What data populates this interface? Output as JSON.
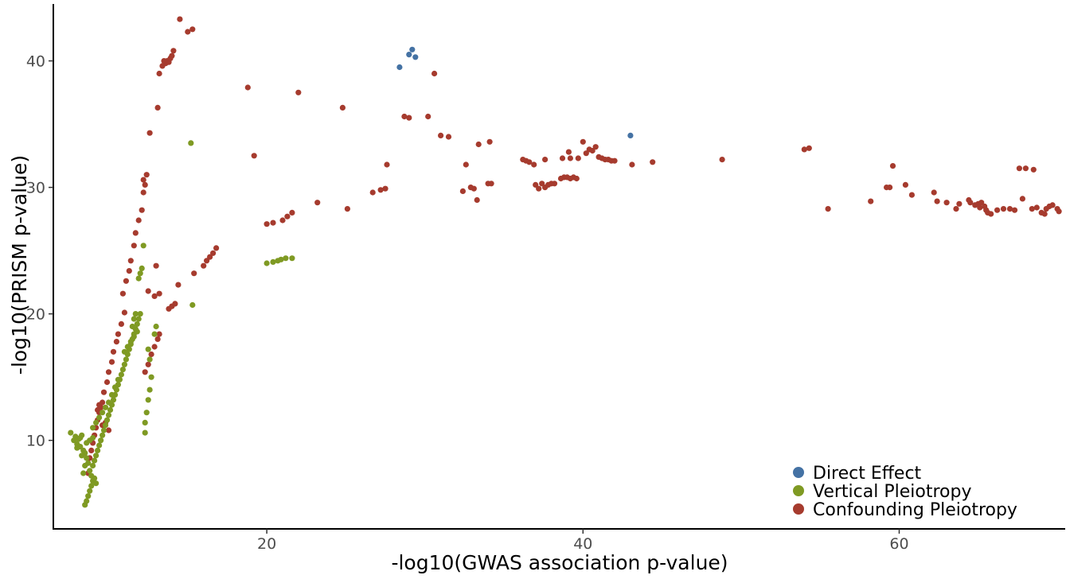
{
  "chart_data": {
    "type": "scatter",
    "title": "",
    "xlabel": "-log10(GWAS association p-value)",
    "ylabel": "-log10(PRISM p-value)",
    "xlim": [
      6.5,
      70.5
    ],
    "ylim": [
      3,
      44.5
    ],
    "xticks": [
      20,
      40,
      60
    ],
    "yticks": [
      10,
      20,
      30,
      40
    ],
    "grid": false,
    "legend_position": "bottom-right",
    "series": [
      {
        "name": "Direct Effect",
        "color": "#4472a4",
        "points": [
          [
            28.4,
            39.5
          ],
          [
            29.0,
            40.5
          ],
          [
            29.2,
            40.9
          ],
          [
            29.4,
            40.3
          ],
          [
            43.0,
            34.1
          ]
        ]
      },
      {
        "name": "Vertical Pleiotropy",
        "color": "#7f9a23",
        "points": [
          [
            7.6,
            10.6
          ],
          [
            7.8,
            10.0
          ],
          [
            7.9,
            10.3
          ],
          [
            8.0,
            9.7
          ],
          [
            8.1,
            10.1
          ],
          [
            8.2,
            9.5
          ],
          [
            8.3,
            10.4
          ],
          [
            8.4,
            9.2
          ],
          [
            8.5,
            9.0
          ],
          [
            8.6,
            8.6
          ],
          [
            8.7,
            8.2
          ],
          [
            8.8,
            7.6
          ],
          [
            8.9,
            7.2
          ],
          [
            9.0,
            6.8
          ],
          [
            8.9,
            6.4
          ],
          [
            8.8,
            6.0
          ],
          [
            8.7,
            5.6
          ],
          [
            8.6,
            5.2
          ],
          [
            8.5,
            4.9
          ],
          [
            9.1,
            7.0
          ],
          [
            9.2,
            6.6
          ],
          [
            9.0,
            8.0
          ],
          [
            9.1,
            8.4
          ],
          [
            9.2,
            8.8
          ],
          [
            9.3,
            9.2
          ],
          [
            9.4,
            9.6
          ],
          [
            9.5,
            10.0
          ],
          [
            9.6,
            10.4
          ],
          [
            9.7,
            10.8
          ],
          [
            9.8,
            11.2
          ],
          [
            9.9,
            11.6
          ],
          [
            10.0,
            12.0
          ],
          [
            10.1,
            12.4
          ],
          [
            10.2,
            12.8
          ],
          [
            10.3,
            13.2
          ],
          [
            10.4,
            13.6
          ],
          [
            10.5,
            14.0
          ],
          [
            10.6,
            14.4
          ],
          [
            10.7,
            14.8
          ],
          [
            10.8,
            15.2
          ],
          [
            10.9,
            15.6
          ],
          [
            11.0,
            16.0
          ],
          [
            11.1,
            16.4
          ],
          [
            11.2,
            16.8
          ],
          [
            11.3,
            17.2
          ],
          [
            11.4,
            17.6
          ],
          [
            11.5,
            18.0
          ],
          [
            11.6,
            18.4
          ],
          [
            11.7,
            18.8
          ],
          [
            11.8,
            19.2
          ],
          [
            11.9,
            19.6
          ],
          [
            12.0,
            20.0
          ],
          [
            9.0,
            11.0
          ],
          [
            9.2,
            11.4
          ],
          [
            9.4,
            11.8
          ],
          [
            9.6,
            12.2
          ],
          [
            9.8,
            12.6
          ],
          [
            10.0,
            13.0
          ],
          [
            10.2,
            13.6
          ],
          [
            10.4,
            14.2
          ],
          [
            10.6,
            14.8
          ],
          [
            11.0,
            17.0
          ],
          [
            11.2,
            17.4
          ],
          [
            11.4,
            17.8
          ],
          [
            11.6,
            18.2
          ],
          [
            11.8,
            18.6
          ],
          [
            11.5,
            19.0
          ],
          [
            11.6,
            19.6
          ],
          [
            11.7,
            20.0
          ],
          [
            11.9,
            22.8
          ],
          [
            12.0,
            23.2
          ],
          [
            12.1,
            23.6
          ],
          [
            12.2,
            25.4
          ],
          [
            12.5,
            17.2
          ],
          [
            12.6,
            16.4
          ],
          [
            12.9,
            18.4
          ],
          [
            13.0,
            19.0
          ],
          [
            12.7,
            15.0
          ],
          [
            12.6,
            14.0
          ],
          [
            12.5,
            13.2
          ],
          [
            12.4,
            12.2
          ],
          [
            12.3,
            11.4
          ],
          [
            12.3,
            10.6
          ],
          [
            15.2,
            33.5
          ],
          [
            15.3,
            20.7
          ],
          [
            20.0,
            24.0
          ],
          [
            20.4,
            24.1
          ],
          [
            20.7,
            24.2
          ],
          [
            20.9,
            24.3
          ],
          [
            21.2,
            24.4
          ],
          [
            21.6,
            24.4
          ],
          [
            8.3,
            8.8
          ],
          [
            8.5,
            8.0
          ],
          [
            8.4,
            7.4
          ],
          [
            8.2,
            10.2
          ],
          [
            8.0,
            9.4
          ],
          [
            8.6,
            9.8
          ],
          [
            8.8,
            10.0
          ],
          [
            9.0,
            10.2
          ]
        ]
      },
      {
        "name": "Confounding Pleiotropy",
        "color": "#a63b2e",
        "points": [
          [
            8.7,
            7.4
          ],
          [
            8.8,
            8.6
          ],
          [
            8.9,
            9.2
          ],
          [
            9.0,
            9.8
          ],
          [
            9.1,
            10.4
          ],
          [
            9.2,
            11.0
          ],
          [
            9.3,
            11.6
          ],
          [
            9.4,
            12.2
          ],
          [
            9.5,
            12.6
          ],
          [
            9.6,
            13.0
          ],
          [
            9.3,
            12.4
          ],
          [
            9.4,
            12.8
          ],
          [
            9.6,
            11.2
          ],
          [
            9.8,
            11.4
          ],
          [
            10.0,
            10.8
          ],
          [
            9.7,
            13.8
          ],
          [
            9.9,
            14.6
          ],
          [
            10.0,
            15.4
          ],
          [
            10.2,
            16.2
          ],
          [
            10.3,
            17.0
          ],
          [
            10.5,
            17.8
          ],
          [
            10.6,
            18.4
          ],
          [
            10.8,
            19.2
          ],
          [
            11.0,
            20.1
          ],
          [
            10.9,
            21.6
          ],
          [
            11.1,
            22.6
          ],
          [
            11.3,
            23.4
          ],
          [
            11.4,
            24.2
          ],
          [
            11.6,
            25.4
          ],
          [
            11.7,
            26.4
          ],
          [
            11.9,
            27.4
          ],
          [
            12.1,
            28.2
          ],
          [
            12.2,
            29.6
          ],
          [
            12.3,
            30.2
          ],
          [
            12.4,
            31.0
          ],
          [
            12.2,
            30.6
          ],
          [
            12.6,
            34.3
          ],
          [
            13.1,
            36.3
          ],
          [
            13.2,
            39.0
          ],
          [
            13.4,
            39.6
          ],
          [
            13.6,
            39.8
          ],
          [
            13.7,
            40.0
          ],
          [
            13.9,
            40.2
          ],
          [
            14.0,
            40.4
          ],
          [
            14.1,
            40.8
          ],
          [
            13.5,
            40.0
          ],
          [
            13.8,
            39.9
          ],
          [
            14.5,
            43.3
          ],
          [
            15.0,
            42.3
          ],
          [
            15.3,
            42.5
          ],
          [
            12.3,
            15.4
          ],
          [
            12.5,
            16.0
          ],
          [
            12.7,
            16.8
          ],
          [
            12.9,
            17.4
          ],
          [
            13.1,
            18.0
          ],
          [
            13.2,
            18.4
          ],
          [
            12.9,
            21.4
          ],
          [
            13.2,
            21.6
          ],
          [
            12.5,
            21.8
          ],
          [
            13.8,
            20.4
          ],
          [
            14.0,
            20.6
          ],
          [
            14.2,
            20.8
          ],
          [
            13.0,
            23.8
          ],
          [
            14.4,
            22.3
          ],
          [
            15.4,
            23.2
          ],
          [
            16.0,
            23.8
          ],
          [
            16.2,
            24.2
          ],
          [
            16.4,
            24.5
          ],
          [
            16.6,
            24.8
          ],
          [
            16.8,
            25.2
          ],
          [
            18.8,
            37.9
          ],
          [
            19.2,
            32.5
          ],
          [
            20.0,
            27.1
          ],
          [
            20.4,
            27.2
          ],
          [
            21.0,
            27.4
          ],
          [
            21.3,
            27.7
          ],
          [
            21.6,
            28.0
          ],
          [
            22.0,
            37.5
          ],
          [
            23.2,
            28.8
          ],
          [
            24.8,
            36.3
          ],
          [
            25.1,
            28.3
          ],
          [
            26.7,
            29.6
          ],
          [
            27.2,
            29.8
          ],
          [
            27.5,
            29.9
          ],
          [
            27.6,
            31.8
          ],
          [
            28.7,
            35.6
          ],
          [
            29.0,
            35.5
          ],
          [
            30.2,
            35.6
          ],
          [
            30.6,
            39.0
          ],
          [
            31.0,
            34.1
          ],
          [
            31.5,
            34.0
          ],
          [
            32.4,
            29.7
          ],
          [
            32.6,
            31.8
          ],
          [
            32.9,
            30.0
          ],
          [
            33.1,
            29.9
          ],
          [
            33.3,
            29.0
          ],
          [
            33.4,
            33.4
          ],
          [
            34.1,
            33.6
          ],
          [
            34.0,
            30.3
          ],
          [
            34.2,
            30.3
          ],
          [
            36.2,
            32.2
          ],
          [
            36.4,
            32.1
          ],
          [
            36.6,
            32.0
          ],
          [
            36.9,
            31.8
          ],
          [
            37.0,
            30.2
          ],
          [
            37.2,
            29.9
          ],
          [
            37.4,
            30.3
          ],
          [
            37.6,
            30.0
          ],
          [
            37.8,
            30.2
          ],
          [
            38.0,
            30.3
          ],
          [
            38.2,
            30.3
          ],
          [
            37.6,
            32.2
          ],
          [
            38.6,
            30.7
          ],
          [
            38.8,
            30.8
          ],
          [
            39.0,
            30.8
          ],
          [
            39.2,
            30.7
          ],
          [
            39.4,
            30.8
          ],
          [
            39.6,
            30.7
          ],
          [
            38.7,
            32.3
          ],
          [
            39.1,
            32.8
          ],
          [
            39.2,
            32.3
          ],
          [
            39.7,
            32.3
          ],
          [
            40.0,
            33.6
          ],
          [
            40.2,
            32.7
          ],
          [
            40.4,
            33.0
          ],
          [
            40.6,
            32.9
          ],
          [
            40.8,
            33.2
          ],
          [
            41.0,
            32.4
          ],
          [
            41.2,
            32.3
          ],
          [
            41.4,
            32.2
          ],
          [
            41.6,
            32.2
          ],
          [
            41.8,
            32.1
          ],
          [
            42.0,
            32.1
          ],
          [
            43.1,
            31.8
          ],
          [
            44.4,
            32.0
          ],
          [
            48.8,
            32.2
          ],
          [
            54.0,
            33.0
          ],
          [
            54.3,
            33.1
          ],
          [
            55.5,
            28.3
          ],
          [
            58.2,
            28.9
          ],
          [
            59.2,
            30.0
          ],
          [
            59.6,
            31.7
          ],
          [
            59.4,
            30.0
          ],
          [
            60.4,
            30.2
          ],
          [
            60.8,
            29.4
          ],
          [
            62.2,
            29.6
          ],
          [
            62.4,
            28.9
          ],
          [
            63.0,
            28.8
          ],
          [
            63.6,
            28.3
          ],
          [
            63.8,
            28.7
          ],
          [
            64.4,
            29.0
          ],
          [
            64.8,
            28.6
          ],
          [
            65.0,
            28.7
          ],
          [
            65.2,
            28.8
          ],
          [
            65.4,
            28.5
          ],
          [
            65.5,
            28.2
          ],
          [
            65.6,
            28.0
          ],
          [
            65.8,
            27.9
          ],
          [
            66.2,
            28.2
          ],
          [
            66.6,
            28.3
          ],
          [
            67.0,
            28.3
          ],
          [
            67.3,
            28.2
          ],
          [
            67.6,
            31.5
          ],
          [
            67.8,
            29.1
          ],
          [
            68.0,
            31.5
          ],
          [
            68.4,
            28.3
          ],
          [
            68.5,
            31.4
          ],
          [
            68.7,
            28.4
          ],
          [
            69.0,
            28.0
          ],
          [
            69.2,
            27.9
          ],
          [
            69.5,
            28.5
          ],
          [
            69.7,
            28.6
          ],
          [
            70.0,
            28.3
          ],
          [
            70.1,
            28.1
          ],
          [
            64.5,
            28.8
          ],
          [
            65.1,
            28.4
          ],
          [
            69.3,
            28.3
          ]
        ]
      }
    ]
  }
}
